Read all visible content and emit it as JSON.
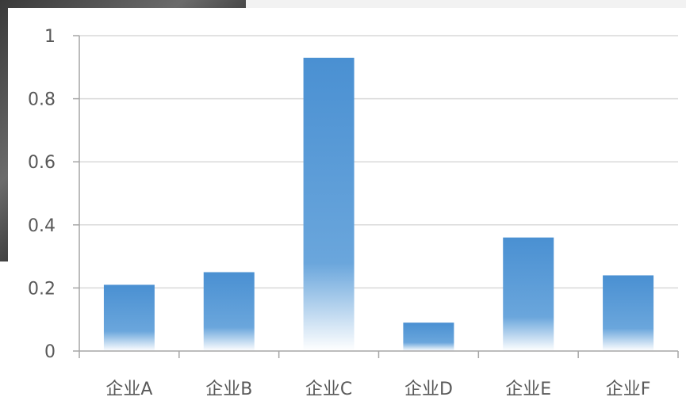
{
  "chart_data": {
    "type": "bar",
    "categories": [
      "企业A",
      "企业B",
      "企业C",
      "企业D",
      "企业E",
      "企业F"
    ],
    "values": [
      0.21,
      0.25,
      0.93,
      0.09,
      0.36,
      0.24
    ],
    "ylim": [
      0,
      1
    ],
    "yticks": [
      0,
      0.2,
      0.4,
      0.6,
      0.8,
      1
    ],
    "ytick_labels": [
      "0",
      "0.2",
      "0.4",
      "0.6",
      "0.8",
      "1"
    ],
    "grid": true,
    "legend": "none",
    "colors": {
      "bar_top": "#4a90d2",
      "bar_bottom": "#ffffff",
      "grid": "#d9d9d9",
      "axis": "#a6a6a6",
      "text": "#595959"
    }
  }
}
